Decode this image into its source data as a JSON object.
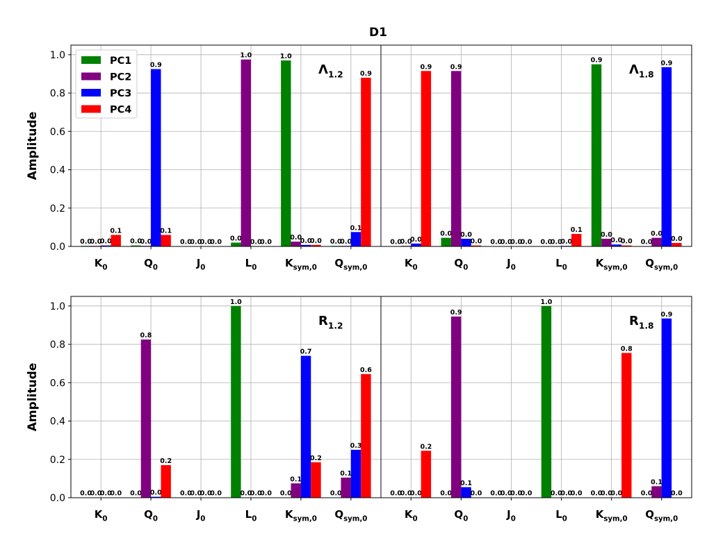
{
  "chart_data": {
    "type": "bar",
    "suptitle": "D1",
    "ylabel": "Amplitude",
    "ylim": [
      0,
      1.05
    ],
    "yticks": [
      "0.0",
      "0.2",
      "0.4",
      "0.6",
      "0.8",
      "1.0"
    ],
    "categories": [
      {
        "base": "K",
        "sub": "0"
      },
      {
        "base": "Q",
        "sub": "0"
      },
      {
        "base": "J",
        "sub": "0"
      },
      {
        "base": "L",
        "sub": "0"
      },
      {
        "base": "K",
        "sub": "sym,0"
      },
      {
        "base": "Q",
        "sub": "sym,0"
      }
    ],
    "series_colors": {
      "PC1": "#008000",
      "PC2": "#800080",
      "PC3": "#0000ff",
      "PC4": "#ff0000"
    },
    "legend": [
      "PC1",
      "PC2",
      "PC3",
      "PC4"
    ],
    "legend_location": "upper-left of first panel",
    "grid": true,
    "panels": [
      {
        "title": {
          "base": "Λ",
          "sub": "1.2"
        },
        "series": [
          {
            "name": "PC1",
            "values": [
              0.003,
              0.005,
              0.001,
              0.02,
              0.97,
              0.003
            ],
            "labels": [
              "0.0",
              "0.0",
              "0.0",
              "0.0",
              "1.0",
              "0.0"
            ]
          },
          {
            "name": "PC2",
            "values": [
              0.003,
              0.003,
              0.001,
              0.975,
              0.025,
              0.003
            ],
            "labels": [
              "0.0",
              "0.0",
              "0.0",
              "1.0",
              "0.0",
              "0.0"
            ]
          },
          {
            "name": "PC3",
            "values": [
              0.005,
              0.925,
              0.001,
              0.002,
              0.008,
              0.075
            ],
            "labels": [
              "0.0",
              "0.9",
              "0.0",
              "0.0",
              "0.0",
              "0.1"
            ]
          },
          {
            "name": "PC4",
            "values": [
              0.06,
              0.06,
              0.001,
              0.002,
              0.008,
              0.88
            ],
            "labels": [
              "0.1",
              "0.1",
              "0.0",
              "0.0",
              "0.0",
              "0.9"
            ]
          }
        ]
      },
      {
        "title": {
          "base": "Λ",
          "sub": "1.8"
        },
        "series": [
          {
            "name": "PC1",
            "values": [
              0.002,
              0.045,
              0.001,
              0.002,
              0.95,
              0.002
            ],
            "labels": [
              "0.0",
              "0.0",
              "0.0",
              "0.0",
              "0.9",
              "0.0"
            ]
          },
          {
            "name": "PC2",
            "values": [
              0.003,
              0.915,
              0.001,
              0.002,
              0.04,
              0.045
            ],
            "labels": [
              "0.0",
              "0.9",
              "0.0",
              "0.0",
              "0.0",
              "0.0"
            ]
          },
          {
            "name": "PC3",
            "values": [
              0.015,
              0.04,
              0.001,
              0.003,
              0.01,
              0.935
            ],
            "labels": [
              "0.0",
              "0.0",
              "0.0",
              "0.0",
              "0.0",
              "0.9"
            ]
          },
          {
            "name": "PC4",
            "values": [
              0.915,
              0.005,
              0.001,
              0.065,
              0.005,
              0.018
            ],
            "labels": [
              "0.9",
              "0.0",
              "0.0",
              "0.1",
              "0.0",
              "0.0"
            ]
          }
        ]
      },
      {
        "title": {
          "base": "R",
          "sub": "1.2"
        },
        "series": [
          {
            "name": "PC1",
            "values": [
              0.001,
              0.001,
              0.001,
              1.0,
              0.001,
              0.001
            ],
            "labels": [
              "0.0",
              "0.0",
              "0.0",
              "1.0",
              "0.0",
              "0.0"
            ]
          },
          {
            "name": "PC2",
            "values": [
              0.001,
              0.825,
              0.001,
              0.001,
              0.075,
              0.105
            ],
            "labels": [
              "0.0",
              "0.8",
              "0.0",
              "0.0",
              "0.1",
              "0.1"
            ]
          },
          {
            "name": "PC3",
            "values": [
              0.001,
              0.005,
              0.001,
              0.001,
              0.74,
              0.25
            ],
            "labels": [
              "0.0",
              "0.0",
              "0.0",
              "0.0",
              "0.7",
              "0.3"
            ]
          },
          {
            "name": "PC4",
            "values": [
              0.001,
              0.17,
              0.001,
              0.001,
              0.185,
              0.645
            ],
            "labels": [
              "0.0",
              "0.2",
              "0.0",
              "0.0",
              "0.2",
              "0.6"
            ]
          }
        ]
      },
      {
        "title": {
          "base": "R",
          "sub": "1.8"
        },
        "series": [
          {
            "name": "PC1",
            "values": [
              0.001,
              0.001,
              0.001,
              1.0,
              0.001,
              0.001
            ],
            "labels": [
              "0.0",
              "0.0",
              "0.0",
              "1.0",
              "0.0",
              "0.0"
            ]
          },
          {
            "name": "PC2",
            "values": [
              0.001,
              0.945,
              0.001,
              0.001,
              0.001,
              0.06
            ],
            "labels": [
              "0.0",
              "0.9",
              "0.0",
              "0.0",
              "0.0",
              "0.1"
            ]
          },
          {
            "name": "PC3",
            "values": [
              0.001,
              0.055,
              0.001,
              0.001,
              0.001,
              0.935
            ],
            "labels": [
              "0.0",
              "0.1",
              "0.0",
              "0.0",
              "0.0",
              "0.9"
            ]
          },
          {
            "name": "PC4",
            "values": [
              0.245,
              0.001,
              0.001,
              0.001,
              0.755,
              0.001
            ],
            "labels": [
              "0.2",
              "0.0",
              "0.0",
              "0.0",
              "0.8",
              "0.0"
            ]
          }
        ]
      }
    ]
  }
}
